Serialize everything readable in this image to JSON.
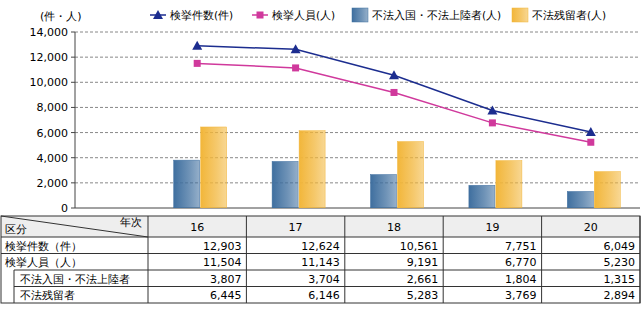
{
  "chart_data": {
    "type": "bar",
    "y_label": "(件・人)",
    "categories": [
      "16",
      "17",
      "18",
      "19",
      "20"
    ],
    "ylim": [
      0,
      14000
    ],
    "yticks": [
      0,
      {
        "value": 2000,
        "label": "2,000"
      },
      {
        "value": 4000,
        "label": "4,000"
      },
      {
        "value": 6000,
        "label": "6,000"
      },
      {
        "value": 8000,
        "label": "8,000"
      },
      {
        "value": 10000,
        "label": "10,000"
      },
      {
        "value": 12000,
        "label": "12,000"
      },
      {
        "value": 14000,
        "label": "14,000"
      }
    ],
    "grid": true,
    "legend": "top",
    "series": [
      {
        "name": "検挙件数(件)",
        "type": "line",
        "color": "#1c2d8f",
        "marker": "triangle",
        "values": [
          12903,
          12624,
          10561,
          7751,
          6049
        ],
        "value_labels": [
          "12,903",
          "12,624",
          "10,561",
          "7,751",
          "6,049"
        ]
      },
      {
        "name": "検挙人員(人)",
        "type": "line",
        "color": "#d0399c",
        "marker": "square",
        "values": [
          11504,
          11143,
          9191,
          6770,
          5230
        ],
        "value_labels": [
          "11,504",
          "11,143",
          "9,191",
          "6,770",
          "5,230"
        ]
      },
      {
        "name": "不法入国・不法上陸者(人)",
        "type": "bar",
        "color": "#3f6f9f",
        "values": [
          3807,
          3704,
          2661,
          1804,
          1315
        ],
        "value_labels": [
          "3,807",
          "3,704",
          "2,661",
          "1,804",
          "1,315"
        ]
      },
      {
        "name": "不法残留者(人)",
        "type": "bar",
        "color": "#f2b63a",
        "values": [
          6445,
          6146,
          5283,
          3769,
          2894
        ],
        "value_labels": [
          "6,445",
          "6,146",
          "5,283",
          "3,769",
          "2,894"
        ]
      }
    ]
  },
  "table": {
    "corner": [
      "年次",
      "区分"
    ],
    "row_labels": [
      "検挙件数（件）",
      "検挙人員（人）",
      "不法入国・不法上陸者",
      "不法残留者"
    ]
  }
}
